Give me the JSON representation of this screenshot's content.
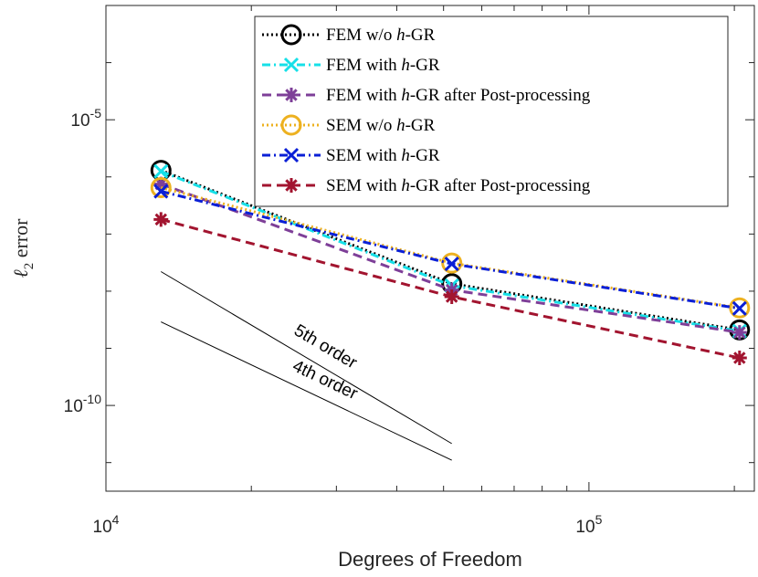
{
  "chart_data": {
    "type": "line",
    "xscale": "log",
    "yscale": "log",
    "xlim": [
      10000,
      220000
    ],
    "ylim": [
      3.16e-12,
      0.001
    ],
    "xlabel": "Degrees of Freedom",
    "ylabel": "ℓ₂ error",
    "ylabel_main": "ℓ",
    "ylabel_sub": "2",
    "ylabel_rest": " error",
    "x_ticks": [
      {
        "value": 10000,
        "base": "10",
        "exp": "4"
      },
      {
        "value": 100000,
        "base": "10",
        "exp": "5"
      }
    ],
    "y_ticks": [
      {
        "value": 1e-05,
        "base": "10",
        "exp": "-5"
      },
      {
        "value": 1e-10,
        "base": "10",
        "exp": "-10"
      }
    ],
    "grid": false,
    "legend_position": "top-right",
    "series": [
      {
        "name": "FEM w/o h-GR",
        "label_pre": "FEM w/o ",
        "label_italic": "h",
        "label_post": "-GR",
        "color": "#000000",
        "dash": "2,3",
        "marker": "circle",
        "x": [
          13000,
          52000,
          205000
        ],
        "y": [
          1.3e-06,
          1.35e-08,
          2.1e-09
        ]
      },
      {
        "name": "FEM with h-GR",
        "label_pre": "FEM with ",
        "label_italic": "h",
        "label_post": "-GR",
        "color": "#16e0e8",
        "dash": "9,4,2,4",
        "marker": "x",
        "x": [
          13000,
          52000,
          205000
        ],
        "y": [
          1.25e-06,
          1.25e-08,
          2e-09
        ]
      },
      {
        "name": "FEM with h-GR after Post-processing",
        "label_pre": "FEM with ",
        "label_italic": "h",
        "label_post": "-GR after Post-processing",
        "color": "#7e3f98",
        "dash": "10,6",
        "marker": "star",
        "x": [
          13000,
          52000,
          205000
        ],
        "y": [
          7.5e-07,
          1.05e-08,
          1.9e-09
        ]
      },
      {
        "name": "SEM w/o h-GR",
        "label_pre": "SEM w/o ",
        "label_italic": "h",
        "label_post": "-GR",
        "color": "#edb120",
        "dash": "2,3",
        "marker": "circle",
        "x": [
          13000,
          52000,
          205000
        ],
        "y": [
          6.5e-07,
          3.1e-08,
          5.1e-09
        ]
      },
      {
        "name": "SEM with h-GR",
        "label_pre": "SEM with ",
        "label_italic": "h",
        "label_post": "-GR",
        "color": "#0a1fd6",
        "dash": "9,4,2,4",
        "marker": "x",
        "x": [
          13000,
          52000,
          205000
        ],
        "y": [
          5.6e-07,
          3e-08,
          5e-09
        ]
      },
      {
        "name": "SEM with h-GR after Post-processing",
        "label_pre": "SEM with ",
        "label_italic": "h",
        "label_post": "-GR after Post-processing",
        "color": "#a2142f",
        "dash": "10,6",
        "marker": "star",
        "x": [
          13000,
          52000,
          205000
        ],
        "y": [
          1.8e-07,
          8e-09,
          6.8e-10
        ]
      }
    ],
    "annotations": [
      {
        "text": "4th order",
        "x": [
          13000,
          52000
        ],
        "y": [
          2.9e-09,
          1.1e-11
        ]
      },
      {
        "text": "5th order",
        "x": [
          13000,
          52000
        ],
        "y": [
          2.2e-08,
          2.15e-11
        ]
      }
    ]
  }
}
